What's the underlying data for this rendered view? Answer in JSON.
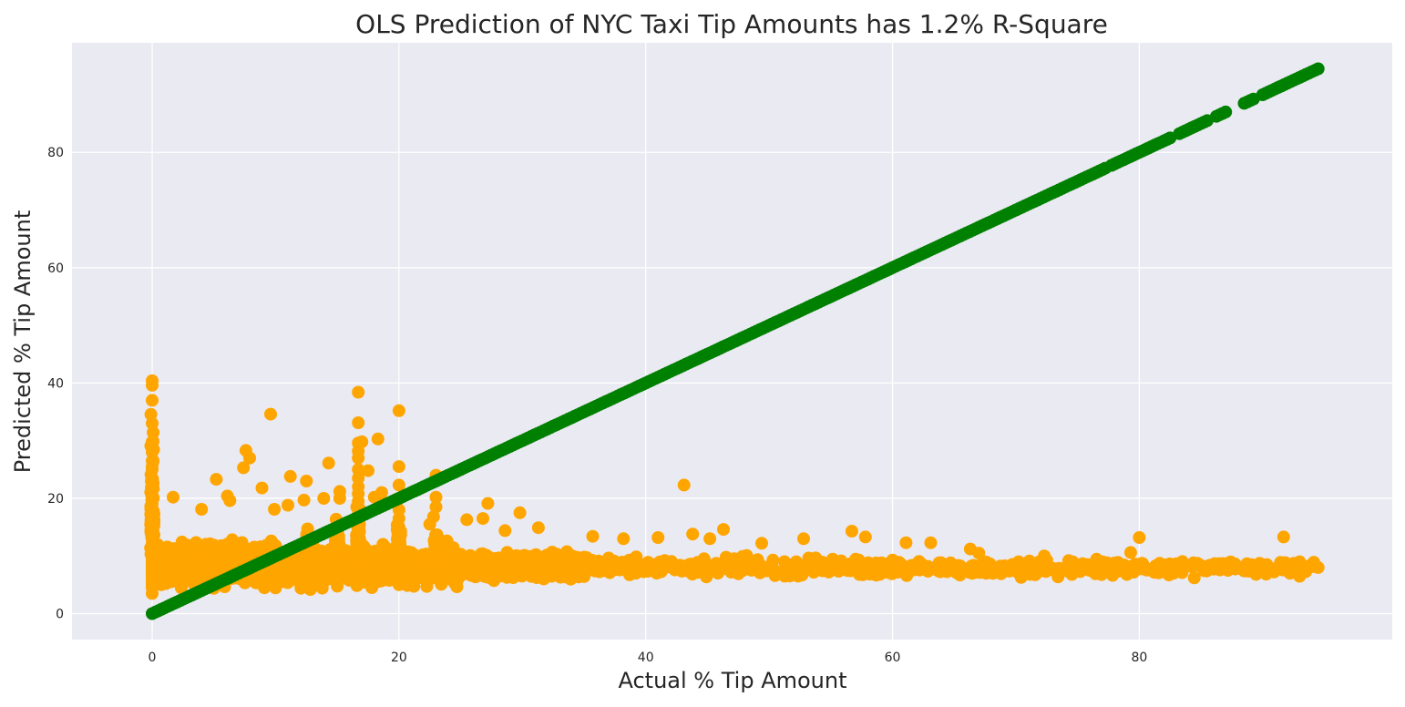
{
  "chart_data": {
    "type": "scatter",
    "title": "OLS Prediction of NYC Taxi Tip Amounts has 1.2% R-Square",
    "xlabel": "Actual % Tip Amount",
    "ylabel": "Predicted % Tip Amount",
    "xlim": [
      -6.5,
      100.5
    ],
    "ylim": [
      -4.5,
      99
    ],
    "xticks": [
      0,
      20,
      40,
      60,
      80
    ],
    "yticks": [
      0,
      20,
      40,
      60,
      80
    ],
    "grid": true,
    "legend": "none",
    "colors": {
      "background": "#eaeaf2",
      "grid": "#ffffff",
      "identity": "#008000",
      "predicted": "#ffa500"
    },
    "series": [
      {
        "kind": "identity_line",
        "color": "#008000",
        "x_start": 0,
        "x_end": 94.5
      },
      {
        "kind": "predictions",
        "color": "#ffa500",
        "points": [
          [
            0,
            40.4
          ],
          [
            0,
            39.6
          ],
          [
            0,
            37.0
          ],
          [
            0,
            33.0
          ],
          [
            0,
            29.8
          ],
          [
            0,
            28.0
          ],
          [
            0,
            26.5
          ],
          [
            0,
            25.0
          ],
          [
            0,
            23.5
          ],
          [
            0,
            22.0
          ],
          [
            0,
            20.5
          ],
          [
            0,
            19.0
          ],
          [
            0,
            17.5
          ],
          [
            0,
            16.0
          ],
          [
            0,
            14.5
          ],
          [
            0,
            13.0
          ],
          [
            0,
            11.5
          ],
          [
            0,
            10.0
          ],
          [
            0,
            8.5
          ],
          [
            0,
            7.0
          ],
          [
            0,
            5.5
          ],
          [
            0,
            4.5
          ],
          [
            0,
            3.5
          ],
          [
            16.7,
            38.4
          ],
          [
            16.7,
            33.1
          ],
          [
            16.7,
            29.6
          ],
          [
            16.7,
            28.2
          ],
          [
            16.7,
            27.0
          ],
          [
            16.7,
            25.0
          ],
          [
            16.7,
            23.5
          ],
          [
            16.7,
            22.0
          ],
          [
            16.7,
            20.8
          ],
          [
            16.7,
            19.5
          ],
          [
            16.7,
            18.0
          ],
          [
            16.7,
            16.5
          ],
          [
            16.7,
            15.0
          ],
          [
            17.0,
            29.8
          ],
          [
            17.5,
            24.8
          ],
          [
            18.3,
            30.3
          ],
          [
            18.6,
            21.0
          ],
          [
            18.8,
            19.2
          ],
          [
            20.0,
            35.2
          ],
          [
            20.0,
            25.5
          ],
          [
            20.0,
            22.3
          ],
          [
            20.0,
            20.0
          ],
          [
            20.0,
            18.0
          ],
          [
            20.0,
            16.5
          ],
          [
            20.0,
            15.0
          ],
          [
            23.0,
            24.0
          ],
          [
            23.0,
            23.2
          ],
          [
            23.0,
            20.2
          ],
          [
            23.0,
            18.5
          ],
          [
            22.8,
            16.8
          ],
          [
            22.5,
            15.5
          ],
          [
            9.6,
            34.6
          ],
          [
            7.6,
            28.3
          ],
          [
            7.9,
            27.0
          ],
          [
            7.4,
            25.3
          ],
          [
            5.2,
            23.3
          ],
          [
            11.2,
            23.8
          ],
          [
            12.5,
            23.0
          ],
          [
            14.3,
            26.1
          ],
          [
            8.9,
            21.8
          ],
          [
            6.1,
            20.4
          ],
          [
            6.3,
            19.6
          ],
          [
            1.7,
            20.2
          ],
          [
            13.9,
            20.0
          ],
          [
            15.2,
            21.2
          ],
          [
            12.3,
            19.7
          ],
          [
            9.9,
            18.1
          ],
          [
            4.0,
            18.1
          ],
          [
            11.0,
            18.8
          ],
          [
            15.2,
            20.0
          ],
          [
            18.0,
            20.2
          ],
          [
            25.5,
            16.3
          ],
          [
            27.2,
            19.1
          ],
          [
            26.8,
            16.5
          ],
          [
            28.6,
            14.4
          ],
          [
            29.8,
            17.5
          ],
          [
            31.3,
            14.9
          ],
          [
            35.7,
            13.4
          ],
          [
            38.2,
            13.0
          ],
          [
            41.0,
            13.2
          ],
          [
            43.1,
            22.3
          ],
          [
            43.8,
            13.8
          ],
          [
            45.2,
            13.0
          ],
          [
            46.3,
            14.6
          ],
          [
            49.4,
            12.2
          ],
          [
            52.8,
            13.0
          ],
          [
            56.7,
            14.3
          ],
          [
            57.8,
            13.3
          ],
          [
            61.1,
            12.3
          ],
          [
            63.1,
            12.3
          ],
          [
            66.3,
            11.2
          ],
          [
            67.0,
            10.5
          ],
          [
            72.3,
            10.0
          ],
          [
            74.6,
            9.0
          ],
          [
            77.0,
            9.0
          ],
          [
            79.3,
            10.6
          ],
          [
            80.0,
            13.2
          ],
          [
            91.7,
            13.3
          ],
          [
            93.0,
            9.0
          ],
          [
            94.5,
            8.0
          ]
        ]
      }
    ]
  }
}
